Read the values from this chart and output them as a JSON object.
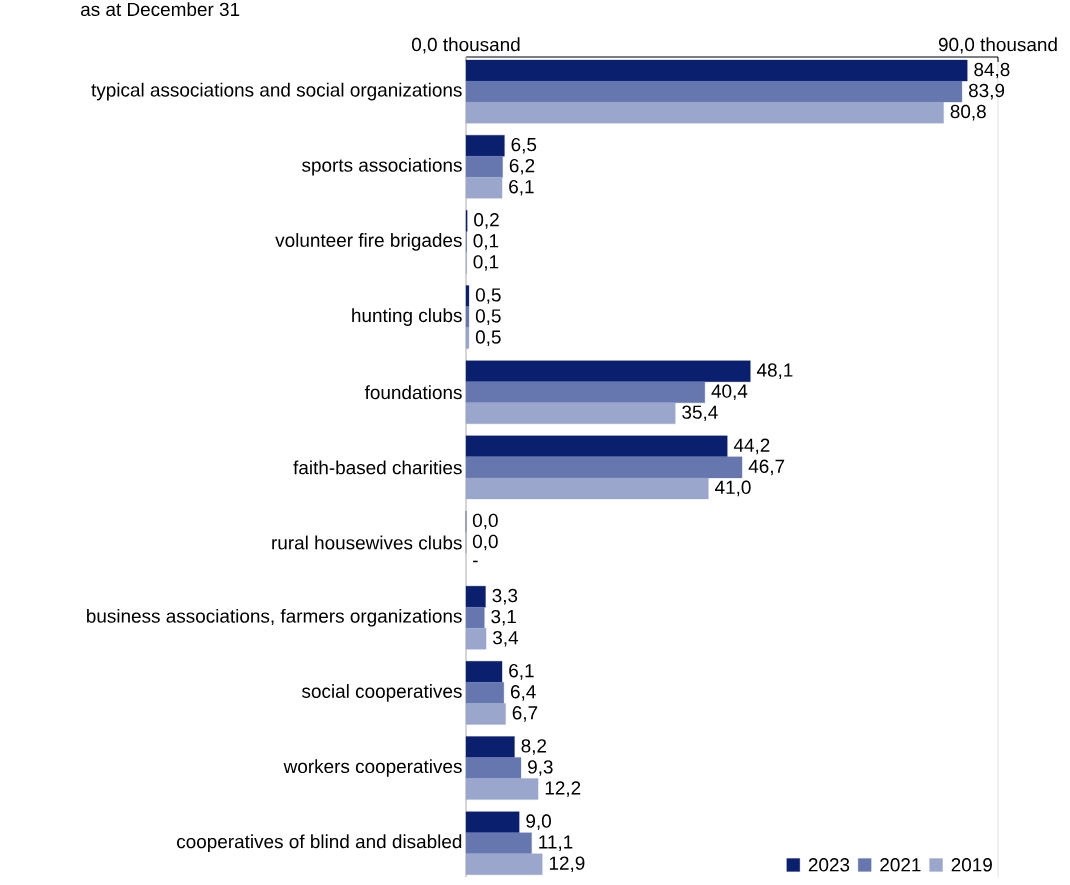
{
  "chart_data": {
    "type": "bar",
    "orientation": "horizontal",
    "subtitle": "as at December 31",
    "categories": [
      "typical associations and social organizations",
      "sports associations",
      "volunteer fire brigades",
      "hunting clubs",
      "foundations",
      "faith-based charities",
      "rural housewives clubs",
      "business associations, farmers organizations",
      "social cooperatives",
      "workers cooperatives",
      "cooperatives of blind and disabled"
    ],
    "series": [
      {
        "name": "2023",
        "color": "#0a1f6e",
        "values": [
          84.8,
          6.5,
          0.2,
          0.5,
          48.1,
          44.2,
          0.0,
          3.3,
          6.1,
          8.2,
          9.0
        ],
        "value_labels": [
          "84,8",
          "6,5",
          "0,2",
          "0,5",
          "48,1",
          "44,2",
          "0,0",
          "3,3",
          "6,1",
          "8,2",
          "9,0"
        ]
      },
      {
        "name": "2021",
        "color": "#6677b0",
        "values": [
          83.9,
          6.2,
          0.1,
          0.5,
          40.4,
          46.7,
          0.0,
          3.1,
          6.4,
          9.3,
          11.1
        ],
        "value_labels": [
          "83,9",
          "6,2",
          "0,1",
          "0,5",
          "40,4",
          "46,7",
          "0,0",
          "3,1",
          "6,4",
          "9,3",
          "11,1"
        ]
      },
      {
        "name": "2019",
        "color": "#9aa6cc",
        "values": [
          80.8,
          6.1,
          0.1,
          0.5,
          35.4,
          41.0,
          null,
          3.4,
          6.7,
          12.2,
          12.9
        ],
        "value_labels": [
          "80,8",
          "6,1",
          "0,1",
          "0,5",
          "35,4",
          "41,0",
          "-",
          "3,4",
          "6,7",
          "12,2",
          "12,9"
        ]
      }
    ],
    "xlim": [
      0,
      90
    ],
    "xticks": [
      {
        "value": 0,
        "label": "0,0 thousand"
      },
      {
        "value": 90,
        "label": "90,0 thousand"
      }
    ],
    "grid": "x",
    "legend": "bottom right"
  }
}
